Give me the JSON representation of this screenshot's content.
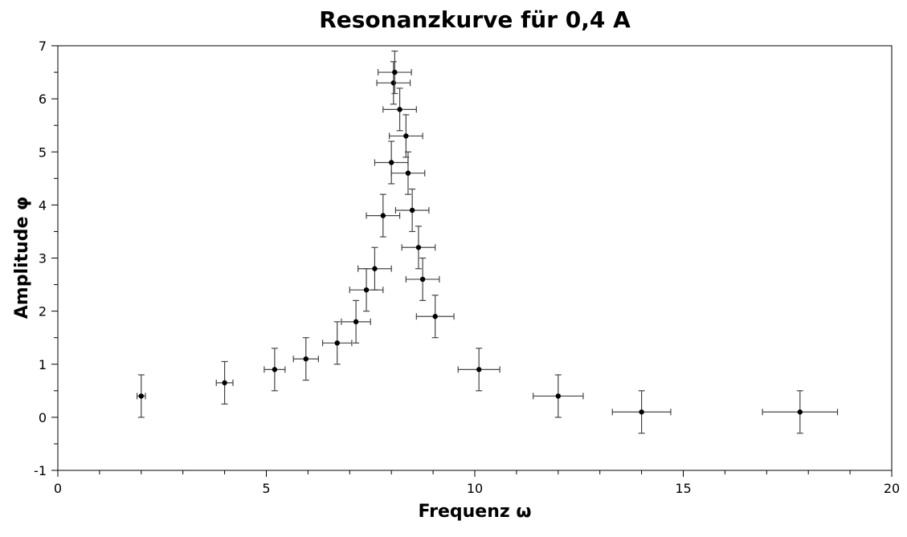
{
  "chart_data": {
    "type": "scatter",
    "title": "Resonanzkurve für 0,4 A",
    "xlabel": "Frequenz ω",
    "ylabel": "Amplitude φ",
    "xlim": [
      0,
      20
    ],
    "ylim": [
      -1,
      7
    ],
    "x_ticks": [
      "0",
      "5",
      "10",
      "15",
      "20"
    ],
    "y_ticks": [
      "-1",
      "0",
      "1",
      "2",
      "3",
      "4",
      "5",
      "6",
      "7"
    ],
    "grid": false,
    "legend": "none",
    "marker_color": "#000000",
    "errorbar_color": "#444444",
    "points": [
      {
        "x": 2.0,
        "y": 0.4,
        "xerr": 0.1,
        "yerr": 0.4
      },
      {
        "x": 4.0,
        "y": 0.65,
        "xerr": 0.2,
        "yerr": 0.4
      },
      {
        "x": 5.2,
        "y": 0.9,
        "xerr": 0.25,
        "yerr": 0.4
      },
      {
        "x": 5.95,
        "y": 1.1,
        "xerr": 0.3,
        "yerr": 0.4
      },
      {
        "x": 6.7,
        "y": 1.4,
        "xerr": 0.35,
        "yerr": 0.4
      },
      {
        "x": 7.15,
        "y": 1.8,
        "xerr": 0.35,
        "yerr": 0.4
      },
      {
        "x": 7.4,
        "y": 2.4,
        "xerr": 0.4,
        "yerr": 0.4
      },
      {
        "x": 7.6,
        "y": 2.8,
        "xerr": 0.4,
        "yerr": 0.4
      },
      {
        "x": 7.8,
        "y": 3.8,
        "xerr": 0.4,
        "yerr": 0.4
      },
      {
        "x": 8.0,
        "y": 4.8,
        "xerr": 0.4,
        "yerr": 0.4
      },
      {
        "x": 8.05,
        "y": 6.3,
        "xerr": 0.4,
        "yerr": 0.4
      },
      {
        "x": 8.08,
        "y": 6.5,
        "xerr": 0.4,
        "yerr": 0.4
      },
      {
        "x": 8.2,
        "y": 5.8,
        "xerr": 0.4,
        "yerr": 0.4
      },
      {
        "x": 8.35,
        "y": 5.3,
        "xerr": 0.4,
        "yerr": 0.4
      },
      {
        "x": 8.4,
        "y": 4.6,
        "xerr": 0.4,
        "yerr": 0.4
      },
      {
        "x": 8.5,
        "y": 3.9,
        "xerr": 0.4,
        "yerr": 0.4
      },
      {
        "x": 8.65,
        "y": 3.2,
        "xerr": 0.4,
        "yerr": 0.4
      },
      {
        "x": 8.75,
        "y": 2.6,
        "xerr": 0.4,
        "yerr": 0.4
      },
      {
        "x": 9.05,
        "y": 1.9,
        "xerr": 0.45,
        "yerr": 0.4
      },
      {
        "x": 10.1,
        "y": 0.9,
        "xerr": 0.5,
        "yerr": 0.4
      },
      {
        "x": 12.0,
        "y": 0.4,
        "xerr": 0.6,
        "yerr": 0.4
      },
      {
        "x": 14.0,
        "y": 0.1,
        "xerr": 0.7,
        "yerr": 0.4
      },
      {
        "x": 17.8,
        "y": 0.1,
        "xerr": 0.9,
        "yerr": 0.4
      }
    ]
  }
}
